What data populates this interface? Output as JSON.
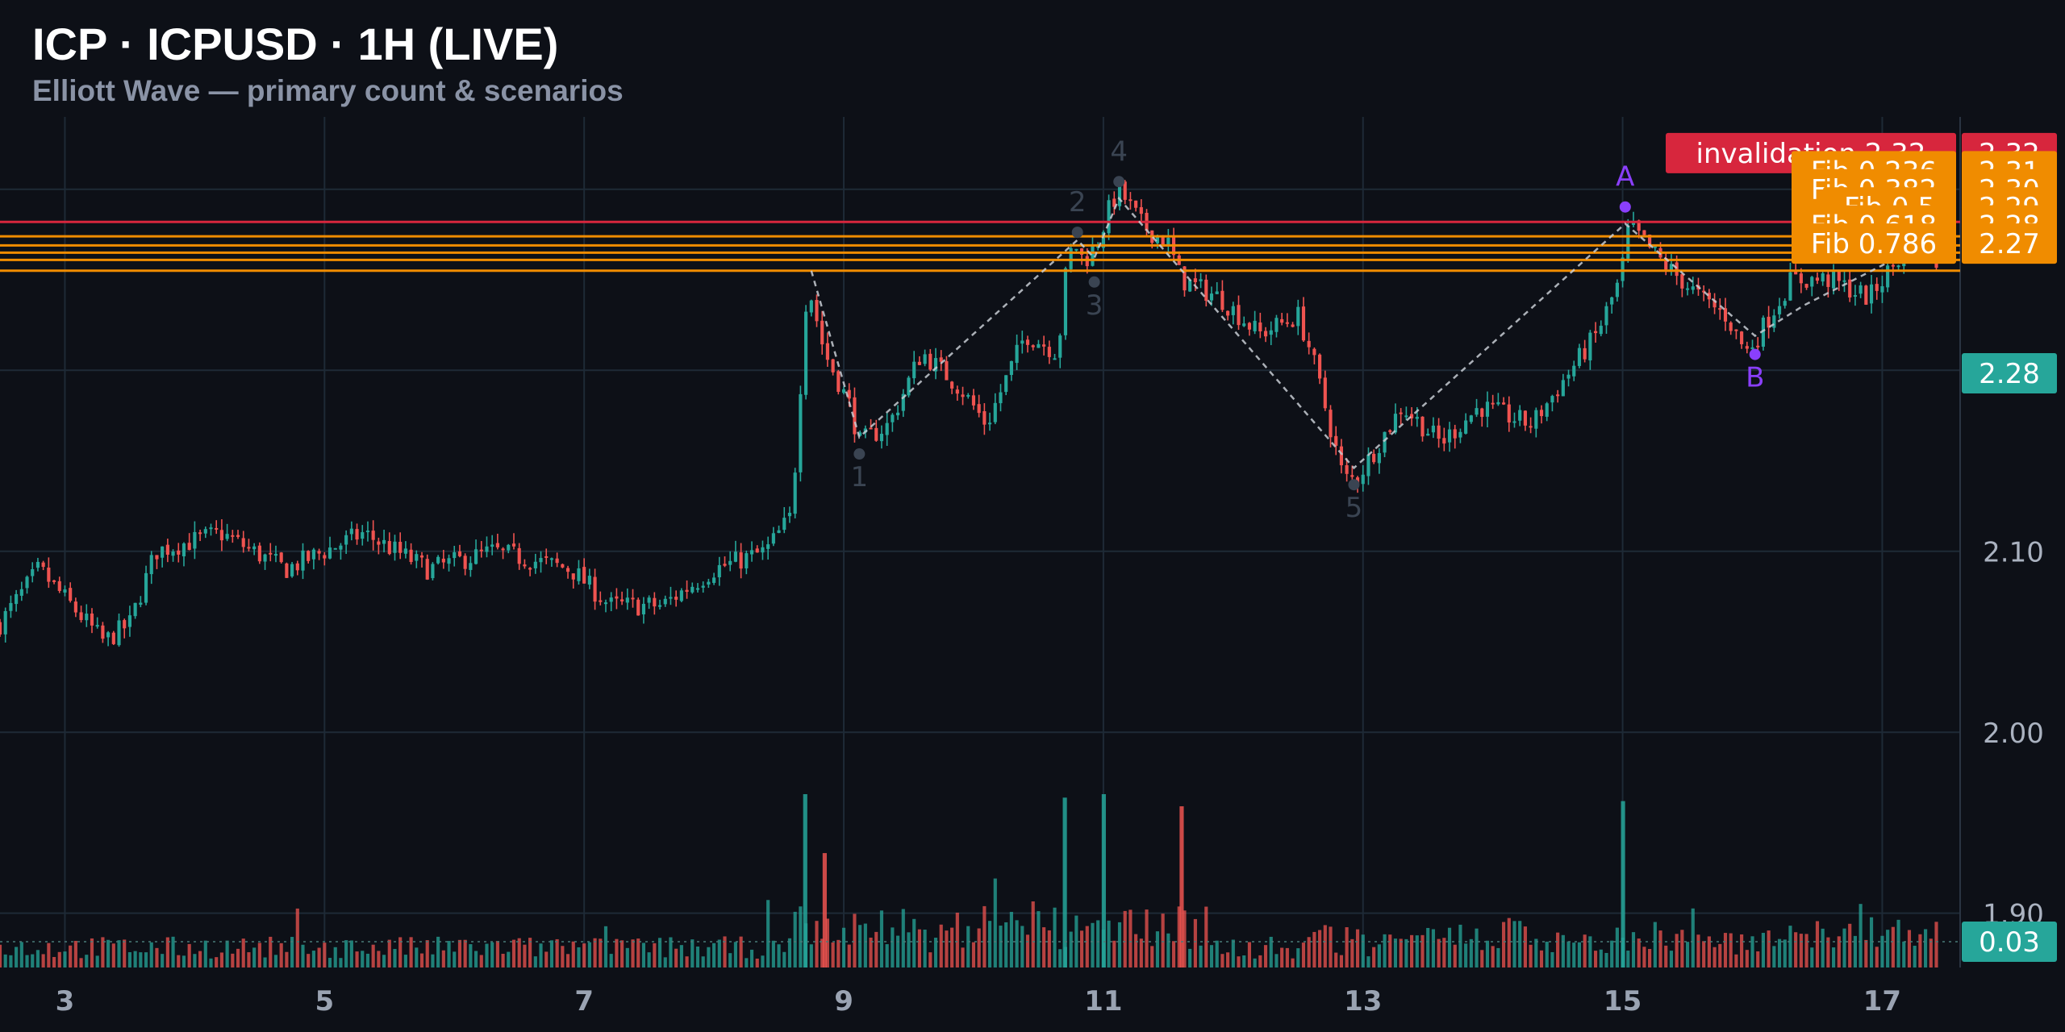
{
  "header": {
    "title": "ICP · ICPUSD · 1H (LIVE)",
    "subtitle": "Elliott Wave — primary count & scenarios"
  },
  "chart_data": {
    "type": "candlestick",
    "x_ticks": [
      "3",
      "5",
      "7",
      "9",
      "11",
      "13",
      "15",
      "17"
    ],
    "y_ticks": [
      "2.00",
      "2.10",
      "2.20",
      "1.90"
    ],
    "ylim": [
      1.87,
      2.34
    ],
    "grid": true,
    "colors": {
      "background": "#0d1017",
      "grid": "#1e2a36",
      "up": "#26a69a",
      "down": "#ef5350",
      "invalidation": "#d7263d",
      "fib": "#f08c00",
      "last_price": "#26a69a",
      "wave_label": "#3a4452",
      "abc": "#8a3ffc",
      "dashed": "#c8ccd4"
    },
    "price_path": [
      [
        2.5,
        2.06
      ],
      [
        2.8,
        2.09
      ],
      [
        3.3,
        2.05
      ],
      [
        3.5,
        2.06
      ],
      [
        3.7,
        2.1
      ],
      [
        4.2,
        2.11
      ],
      [
        4.7,
        2.09
      ],
      [
        5.3,
        2.11
      ],
      [
        5.8,
        2.09
      ],
      [
        6.3,
        2.1
      ],
      [
        6.9,
        2.09
      ],
      [
        7.2,
        2.07
      ],
      [
        7.6,
        2.07
      ],
      [
        8.0,
        2.09
      ],
      [
        8.4,
        2.1
      ],
      [
        8.6,
        2.12
      ],
      [
        8.72,
        2.25
      ],
      [
        8.85,
        2.21
      ],
      [
        9.05,
        2.18
      ],
      [
        9.12,
        2.16
      ],
      [
        9.35,
        2.17
      ],
      [
        9.6,
        2.21
      ],
      [
        9.9,
        2.19
      ],
      [
        10.1,
        2.17
      ],
      [
        10.4,
        2.22
      ],
      [
        10.65,
        2.21
      ],
      [
        10.72,
        2.26
      ],
      [
        10.78,
        2.27
      ],
      [
        10.85,
        2.26
      ],
      [
        10.95,
        2.27
      ],
      [
        11.05,
        2.29
      ],
      [
        11.12,
        2.3
      ],
      [
        11.3,
        2.28
      ],
      [
        11.5,
        2.27
      ],
      [
        11.6,
        2.25
      ],
      [
        11.9,
        2.24
      ],
      [
        12.2,
        2.22
      ],
      [
        12.5,
        2.23
      ],
      [
        12.6,
        2.21
      ],
      [
        12.85,
        2.14
      ],
      [
        12.95,
        2.14
      ],
      [
        13.3,
        2.18
      ],
      [
        13.6,
        2.16
      ],
      [
        13.9,
        2.18
      ],
      [
        14.3,
        2.17
      ],
      [
        14.6,
        2.2
      ],
      [
        14.8,
        2.22
      ],
      [
        14.98,
        2.25
      ],
      [
        15.05,
        2.28
      ],
      [
        15.3,
        2.26
      ],
      [
        15.6,
        2.24
      ],
      [
        15.8,
        2.23
      ],
      [
        15.95,
        2.21
      ],
      [
        16.05,
        2.22
      ],
      [
        16.3,
        2.25
      ],
      [
        16.6,
        2.25
      ],
      [
        16.9,
        2.24
      ],
      [
        17.1,
        2.26
      ],
      [
        17.3,
        2.27
      ],
      [
        17.45,
        2.26
      ]
    ],
    "last_price": "2.28",
    "last_volume": "0.03",
    "volume_spikes": [
      {
        "x": 8.7,
        "v": 1.0,
        "up": true
      },
      {
        "x": 8.85,
        "v": 0.66,
        "up": false
      },
      {
        "x": 10.7,
        "v": 0.98,
        "up": true
      },
      {
        "x": 11.0,
        "v": 1.0,
        "up": true
      },
      {
        "x": 11.6,
        "v": 0.93,
        "up": false
      },
      {
        "x": 15.0,
        "v": 0.96,
        "up": true
      }
    ],
    "levels": [
      {
        "label": "invalidation 2.32",
        "price_label": "2.32",
        "value": 2.32,
        "line_value": 2.282,
        "kind": "invalidation"
      },
      {
        "label": "Fib 0.236",
        "price_label": "2.31",
        "value": 2.31,
        "line_value": 2.274,
        "kind": "fib"
      },
      {
        "label": "Fib 0.382",
        "price_label": "2.30",
        "value": 2.3,
        "line_value": 2.269,
        "kind": "fib"
      },
      {
        "label": "Fib 0.5",
        "price_label": "2.29",
        "value": 2.29,
        "line_value": 2.265,
        "kind": "fib"
      },
      {
        "label": "Fib 0.618",
        "price_label": "2.28",
        "value": 2.28,
        "line_value": 2.261,
        "kind": "fib"
      },
      {
        "label": "Fib 0.786",
        "price_label": "2.27",
        "value": 2.27,
        "line_value": 2.255,
        "kind": "fib"
      }
    ],
    "waves": [
      {
        "label": "1",
        "x": 9.12,
        "y": 2.16,
        "pos": "below"
      },
      {
        "label": "2",
        "x": 10.8,
        "y": 2.27,
        "pos": "above"
      },
      {
        "label": "3",
        "x": 10.93,
        "y": 2.255,
        "pos": "below"
      },
      {
        "label": "4",
        "x": 11.12,
        "y": 2.298,
        "pos": "above"
      },
      {
        "label": "5",
        "x": 12.93,
        "y": 2.143,
        "pos": "below"
      },
      {
        "label": "A",
        "x": 15.02,
        "y": 2.284,
        "pos": "above"
      },
      {
        "label": "B",
        "x": 16.02,
        "y": 2.215,
        "pos": "below"
      }
    ],
    "wave_path": [
      [
        8.75,
        2.255
      ],
      [
        9.12,
        2.163
      ],
      [
        10.8,
        2.272
      ],
      [
        10.93,
        2.262
      ],
      [
        11.12,
        2.295
      ],
      [
        12.93,
        2.146
      ],
      [
        15.02,
        2.281
      ],
      [
        16.02,
        2.219
      ],
      [
        16.4,
        2.236
      ],
      [
        17.3,
        2.269
      ]
    ]
  }
}
